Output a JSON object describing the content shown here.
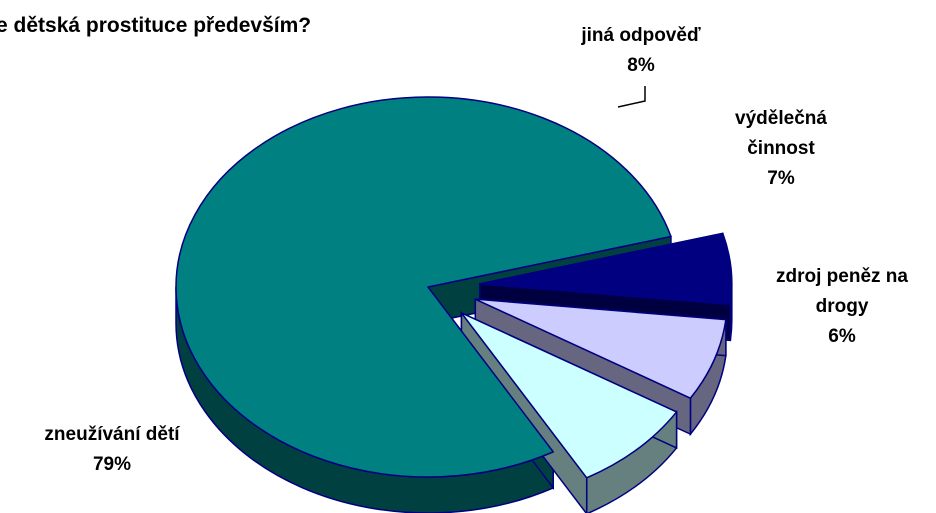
{
  "chart_data": {
    "type": "pie",
    "title": "e dětská prostituce především?",
    "slices": [
      {
        "label_lines": [
          "zneužívání dětí"
        ],
        "value": 79,
        "value_label": "79%",
        "color": "#008080",
        "side_color": "#004040"
      },
      {
        "label_lines": [
          "zdroj peněz na",
          "drogy"
        ],
        "value": 6,
        "value_label": "6%",
        "color": "#000080",
        "side_color": "#000040"
      },
      {
        "label_lines": [
          "výdělečná",
          "činnost"
        ],
        "value": 7,
        "value_label": "7%",
        "color": "#CCCCFF",
        "side_color": "#666680"
      },
      {
        "label_lines": [
          "jiná odpověď"
        ],
        "value": 8,
        "value_label": "8%",
        "color": "#CCFFFF",
        "side_color": "#668080"
      }
    ],
    "unit": "%",
    "style": "3d-exploded",
    "outline_color": "#000080"
  }
}
